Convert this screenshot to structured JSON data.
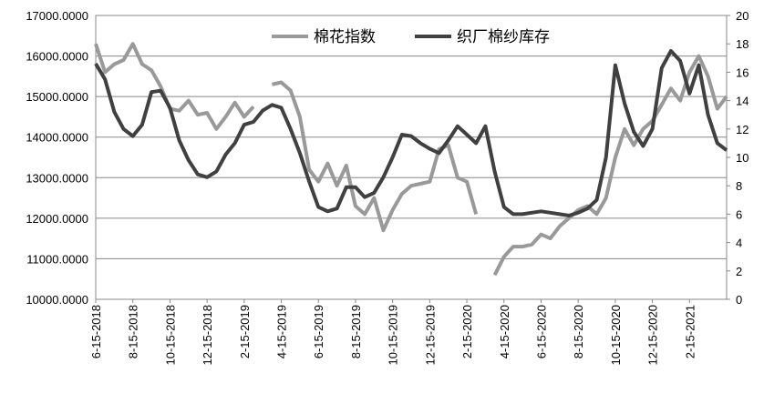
{
  "chart_data": {
    "type": "line",
    "categories": [
      "6-15-2018",
      null,
      null,
      null,
      "8-15-2018",
      null,
      null,
      null,
      "10-15-2018",
      null,
      null,
      null,
      "12-15-2018",
      null,
      null,
      null,
      "2-15-2019",
      null,
      null,
      null,
      "4-15-2019",
      null,
      null,
      null,
      "6-15-2019",
      null,
      null,
      null,
      "8-15-2019",
      null,
      null,
      null,
      "10-15-2019",
      null,
      null,
      null,
      "12-15-2019",
      null,
      null,
      null,
      "2-15-2020",
      null,
      null,
      null,
      "4-15-2020",
      null,
      null,
      null,
      "6-15-2020",
      null,
      null,
      null,
      "8-15-2020",
      null,
      null,
      null,
      "10-15-2020",
      null,
      null,
      null,
      "12-15-2020",
      null,
      null,
      null,
      "2-15-2021",
      null,
      null,
      null,
      null
    ],
    "series": [
      {
        "name": "棉花指数",
        "color": "#999999",
        "axis": "y",
        "values": [
          16300,
          15600,
          15800,
          15900,
          16300,
          15800,
          15650,
          15250,
          14700,
          14650,
          14900,
          14550,
          14600,
          14200,
          14500,
          14850,
          14500,
          14750,
          null,
          15300,
          15350,
          15150,
          14500,
          13200,
          12900,
          13350,
          12800,
          13300,
          12300,
          12100,
          12500,
          11700,
          12200,
          12600,
          12800,
          12850,
          12900,
          13700,
          13800,
          13000,
          12900,
          12100,
          null,
          10600,
          11050,
          11300,
          11300,
          11350,
          11600,
          11500,
          11800,
          12000,
          12200,
          12300,
          12100,
          12500,
          13500,
          14200,
          13800,
          14200,
          14400,
          14800,
          15200,
          14900,
          15600,
          16000,
          15500,
          14700,
          15000
        ]
      },
      {
        "name": "织厂棉纱库存",
        "color": "#404040",
        "axis": "y2",
        "values": [
          16.6,
          15.5,
          13.2,
          12,
          11.5,
          12.3,
          14.6,
          14.7,
          13.5,
          11.2,
          9.8,
          8.8,
          8.6,
          9,
          10.2,
          11,
          12.3,
          12.5,
          13.3,
          13.7,
          13.5,
          12,
          10.3,
          8.3,
          6.5,
          6.2,
          6.4,
          7.9,
          7.9,
          7.2,
          7.5,
          8.6,
          10,
          11.6,
          11.5,
          11,
          10.6,
          10.3,
          11.2,
          12.2,
          11.6,
          11,
          12.2,
          9,
          6.5,
          6,
          6,
          6.1,
          6.2,
          6.1,
          6,
          5.9,
          6.1,
          6.4,
          7,
          10,
          16.5,
          13.8,
          11.8,
          10.8,
          12,
          16.3,
          17.5,
          16.8,
          14.5,
          16.5,
          13,
          11,
          10.5
        ]
      }
    ],
    "ylim": [
      10000,
      17000
    ],
    "yticks": [
      {
        "value": 10000,
        "label": "10000.0000"
      },
      {
        "value": 11000,
        "label": "11000.0000"
      },
      {
        "value": 12000,
        "label": "12000.0000"
      },
      {
        "value": 13000,
        "label": "13000.0000"
      },
      {
        "value": 14000,
        "label": "14000.0000"
      },
      {
        "value": 15000,
        "label": "15000.0000"
      },
      {
        "value": 16000,
        "label": "16000.0000"
      },
      {
        "value": 17000,
        "label": "17000.0000"
      }
    ],
    "y2lim": [
      0,
      20
    ],
    "y2ticks": [
      0,
      2,
      4,
      6,
      8,
      10,
      12,
      14,
      16,
      18,
      20
    ],
    "grid": true,
    "legend": "top"
  }
}
